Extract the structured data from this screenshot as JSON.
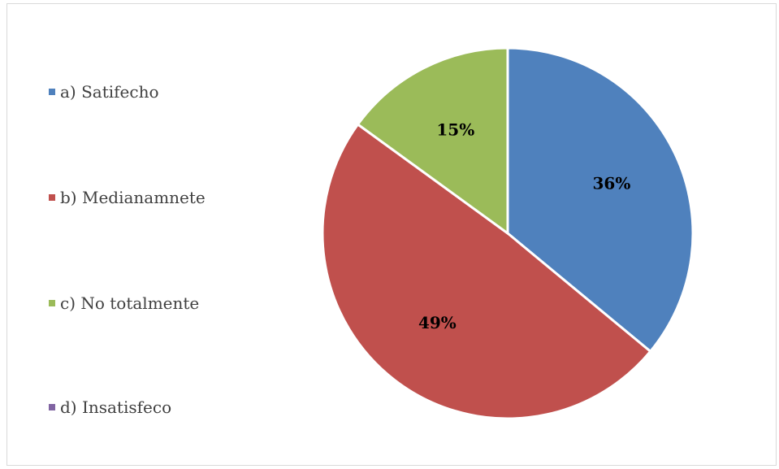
{
  "chart_data": {
    "type": "pie",
    "categories": [
      "a) Satifecho",
      "b) Medianamnete",
      "c) No totalmente",
      "d) Insatisfeco"
    ],
    "values": [
      36,
      49,
      15,
      0
    ],
    "data_labels": [
      "36%",
      "49%",
      "15%",
      ""
    ],
    "colors": [
      "#4f81bd",
      "#c0504d",
      "#9bbb59",
      "#8064a2"
    ],
    "legend_position": "left"
  }
}
